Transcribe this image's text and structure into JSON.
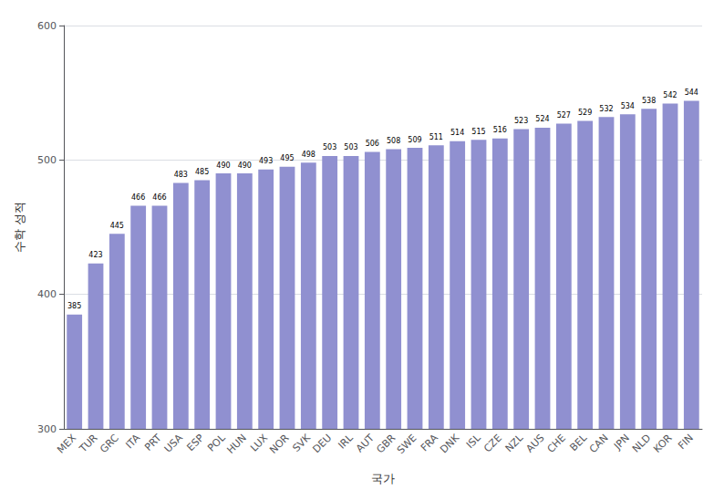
{
  "chart_data": {
    "type": "bar",
    "categories": [
      "MEX",
      "TUR",
      "GRC",
      "ITA",
      "PRT",
      "USA",
      "ESP",
      "POL",
      "HUN",
      "LUX",
      "NOR",
      "SVK",
      "DEU",
      "IRL",
      "AUT",
      "GBR",
      "SWE",
      "FRA",
      "DNK",
      "ISL",
      "CZE",
      "NZL",
      "AUS",
      "CHE",
      "BEL",
      "CAN",
      "JPN",
      "NLD",
      "KOR",
      "FIN"
    ],
    "values": [
      385,
      423,
      445,
      466,
      466,
      483,
      485,
      490,
      490,
      493,
      495,
      498,
      503,
      503,
      506,
      508,
      509,
      511,
      514,
      515,
      516,
      523,
      524,
      527,
      529,
      532,
      534,
      538,
      542,
      544
    ],
    "color": "#9090d0",
    "xlabel": "국가",
    "ylabel": "수학 성적",
    "ylim": [
      300,
      600
    ],
    "yticks": [
      300,
      400,
      500,
      600
    ],
    "grid": true,
    "data_labels": true
  }
}
